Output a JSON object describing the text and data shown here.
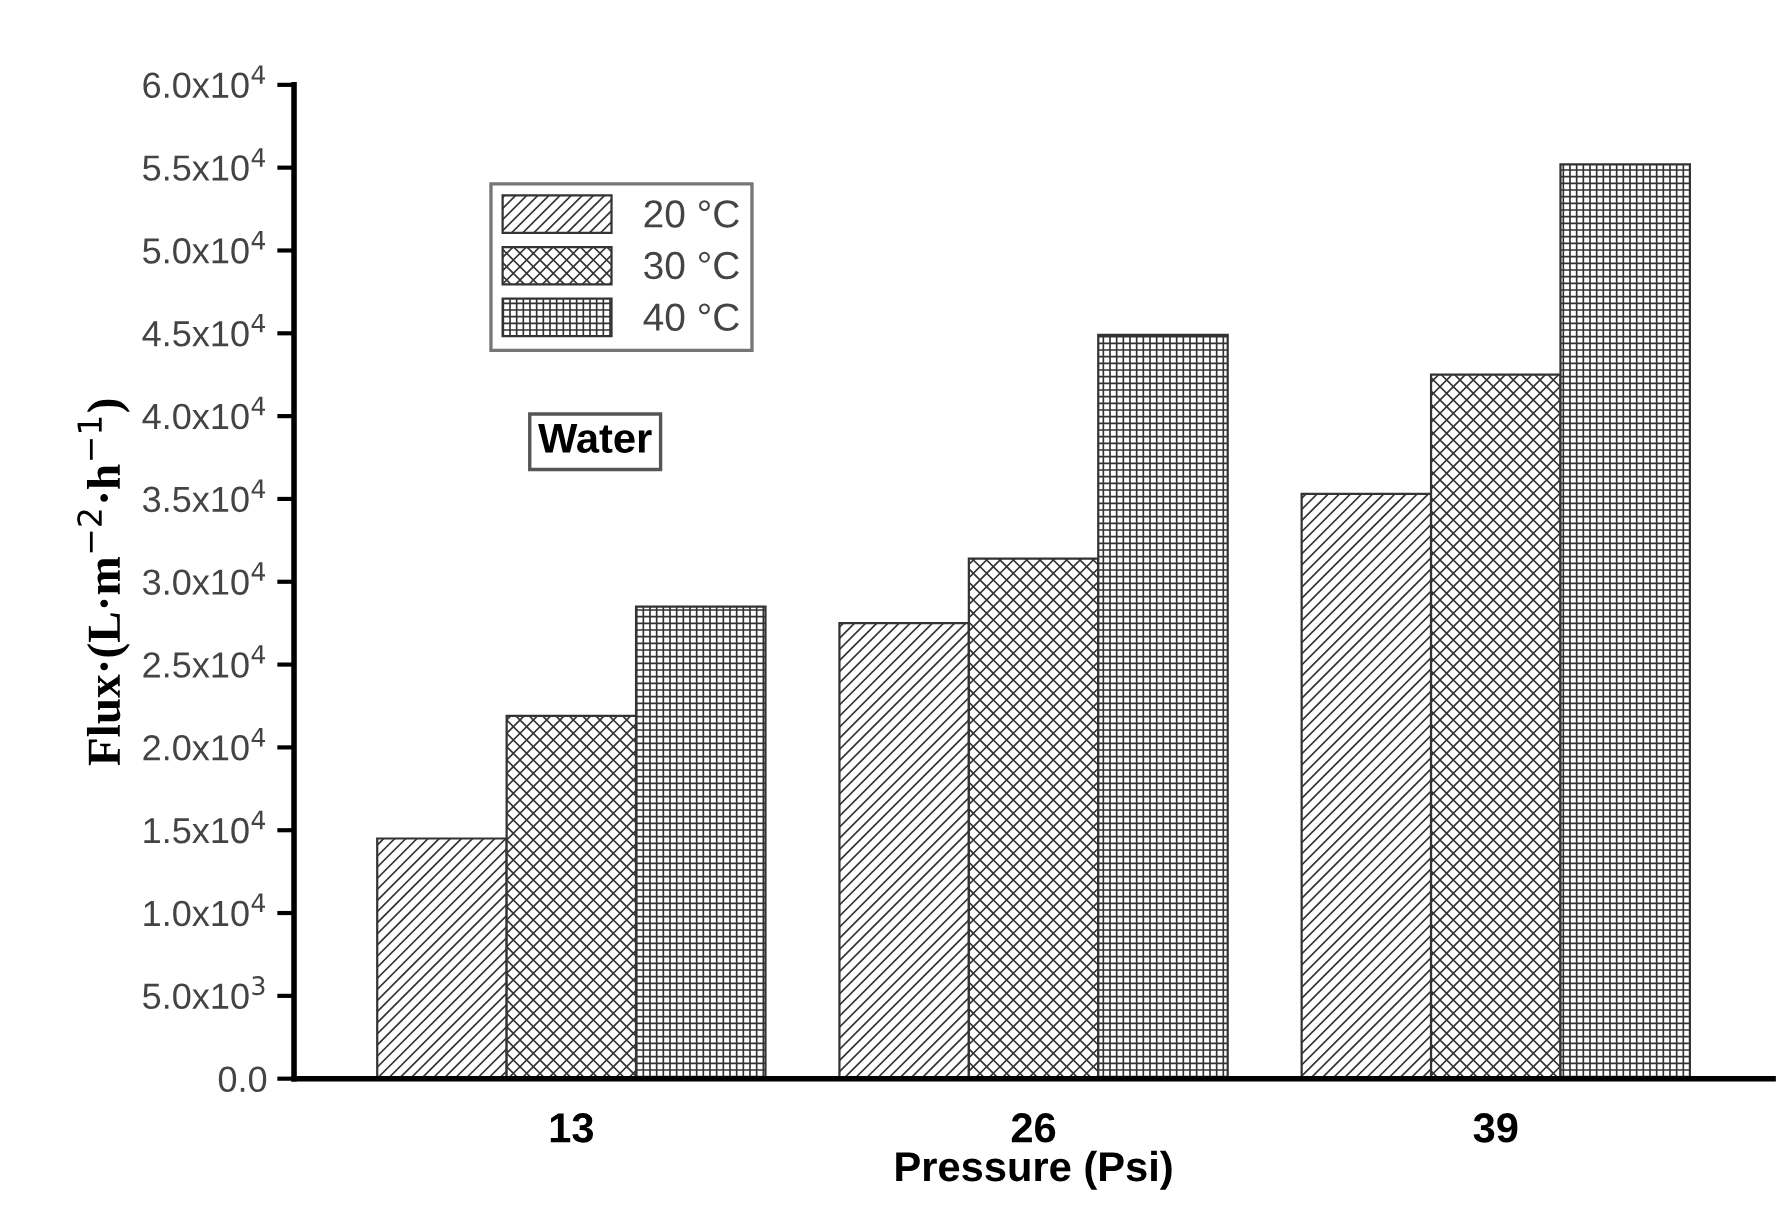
{
  "chart_data": {
    "type": "bar",
    "xlabel": "Pressure (Psi)",
    "ylabel": "Flux·(L·m$^{−2}$·h$^{−1}$)",
    "categories": [
      "13",
      "26",
      "39"
    ],
    "series": [
      {
        "name": "20 °C",
        "color": "#333333",
        "values": [
          14500,
          27500,
          35300
        ]
      },
      {
        "name": "30 °C",
        "color": "#333333",
        "values": [
          21900,
          31400,
          42500
        ]
      },
      {
        "name": "40 °C",
        "color": "#333333",
        "values": [
          28500,
          44900,
          55200
        ]
      }
    ],
    "ylim": [
      0,
      60000
    ],
    "yticks": [
      {
        "value": 0,
        "label": "0.0"
      },
      {
        "value": 5000,
        "label": "5.0x10$^{3}$"
      },
      {
        "value": 10000,
        "label": "1.0x10$^{4}$"
      },
      {
        "value": 15000,
        "label": "1.5x10$^{4}$"
      },
      {
        "value": 20000,
        "label": "2.0x10$^{4}$"
      },
      {
        "value": 25000,
        "label": "2.5x10$^{4}$"
      },
      {
        "value": 30000,
        "label": "3.0x10$^{4}$"
      },
      {
        "value": 35000,
        "label": "3.5x10$^{4}$"
      },
      {
        "value": 40000,
        "label": "4.0x10$^{4}$"
      },
      {
        "value": 45000,
        "label": "4.5x10$^{4}$"
      },
      {
        "value": 50000,
        "label": "5.0x10$^{4}$"
      },
      {
        "value": 55000,
        "label": "5.5x10$^{4}$"
      },
      {
        "value": 60000,
        "label": "6.0x10$^{4}$"
      }
    ],
    "legend": "top left",
    "grid": false,
    "annotations": [
      "Water"
    ]
  }
}
